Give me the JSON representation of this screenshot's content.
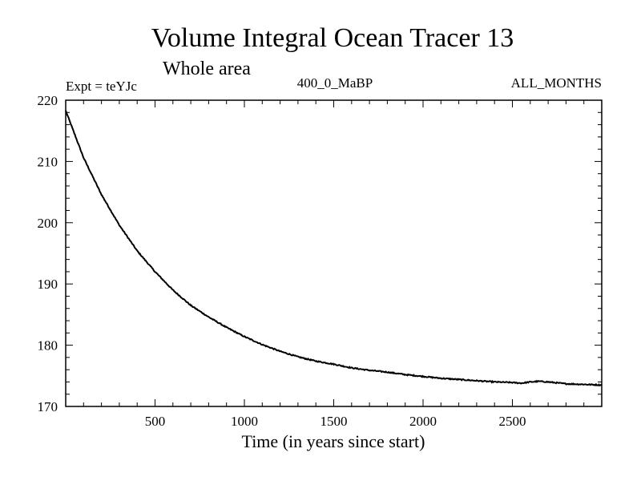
{
  "chart_data": {
    "type": "line",
    "title": "Volume Integral Ocean Tracer 13",
    "subtitle": "Whole area",
    "expt_label": "Expt = teYJc",
    "run_label": "400_0_MaBP",
    "months_label": "ALL_MONTHS",
    "xlabel": "Time (in years since start)",
    "ylabel": "",
    "xlim": [
      0,
      3000
    ],
    "ylim": [
      170,
      220
    ],
    "x_ticks": [
      500,
      1000,
      1500,
      2000,
      2500
    ],
    "y_ticks": [
      170,
      180,
      190,
      200,
      210,
      220
    ],
    "grid": false,
    "series": [
      {
        "name": "Volume Integral Ocean Tracer 13",
        "color": "#000000",
        "x": [
          0,
          100,
          200,
          300,
          400,
          500,
          600,
          700,
          800,
          900,
          1000,
          1100,
          1200,
          1300,
          1400,
          1500,
          1600,
          1700,
          1800,
          1900,
          2000,
          2100,
          2200,
          2300,
          2400,
          2500,
          2550,
          2600,
          2650,
          2700,
          2800,
          2900,
          3000
        ],
        "y": [
          218.3,
          210.6,
          204.6,
          199.6,
          195.4,
          192.0,
          189.0,
          186.5,
          184.6,
          182.9,
          181.4,
          180.1,
          179.0,
          178.1,
          177.4,
          176.9,
          176.3,
          175.9,
          175.6,
          175.2,
          174.9,
          174.6,
          174.4,
          174.2,
          174.0,
          173.9,
          173.8,
          174.0,
          174.1,
          174.0,
          173.7,
          173.6,
          173.5
        ]
      }
    ]
  }
}
